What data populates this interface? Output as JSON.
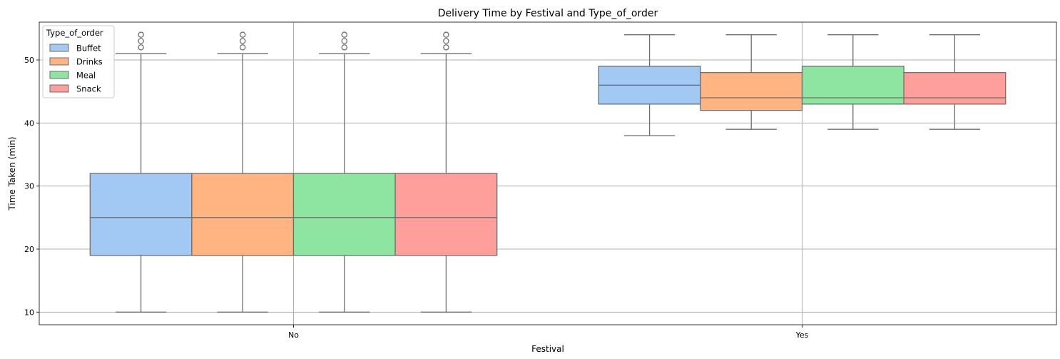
{
  "chart_data": {
    "type": "boxplot",
    "title": "Delivery Time by Festival and Type_of_order",
    "xlabel": "Festival",
    "ylabel": "Time Taken (min)",
    "categories": [
      "No",
      "Yes"
    ],
    "ylim": [
      8,
      56
    ],
    "yticks": [
      10,
      20,
      30,
      40,
      50
    ],
    "grid": true,
    "legend": {
      "title": "Type_of_order",
      "placement": "top-left"
    },
    "series": [
      {
        "name": "Buffet",
        "color": "#a1c9f4",
        "boxes": [
          {
            "whislo": 10,
            "q1": 19,
            "med": 25,
            "q3": 32,
            "whishi": 51,
            "fliers": [
              52,
              53,
              54
            ]
          },
          {
            "whislo": 38,
            "q1": 43,
            "med": 46,
            "q3": 49,
            "whishi": 54,
            "fliers": []
          }
        ]
      },
      {
        "name": "Drinks",
        "color": "#ffb482",
        "boxes": [
          {
            "whislo": 10,
            "q1": 19,
            "med": 25,
            "q3": 32,
            "whishi": 51,
            "fliers": [
              52,
              53,
              54
            ]
          },
          {
            "whislo": 39,
            "q1": 42,
            "med": 44,
            "q3": 48,
            "whishi": 54,
            "fliers": []
          }
        ]
      },
      {
        "name": "Meal",
        "color": "#8de5a1",
        "boxes": [
          {
            "whislo": 10,
            "q1": 19,
            "med": 25,
            "q3": 32,
            "whishi": 51,
            "fliers": [
              52,
              53,
              54
            ]
          },
          {
            "whislo": 39,
            "q1": 43,
            "med": 44,
            "q3": 49,
            "whishi": 54,
            "fliers": []
          }
        ]
      },
      {
        "name": "Snack",
        "color": "#ff9f9b",
        "boxes": [
          {
            "whislo": 10,
            "q1": 19,
            "med": 25,
            "q3": 32,
            "whishi": 51,
            "fliers": [
              52,
              53,
              54
            ]
          },
          {
            "whislo": 39,
            "q1": 43,
            "med": 44,
            "q3": 48,
            "whishi": 54,
            "fliers": []
          }
        ]
      }
    ]
  }
}
